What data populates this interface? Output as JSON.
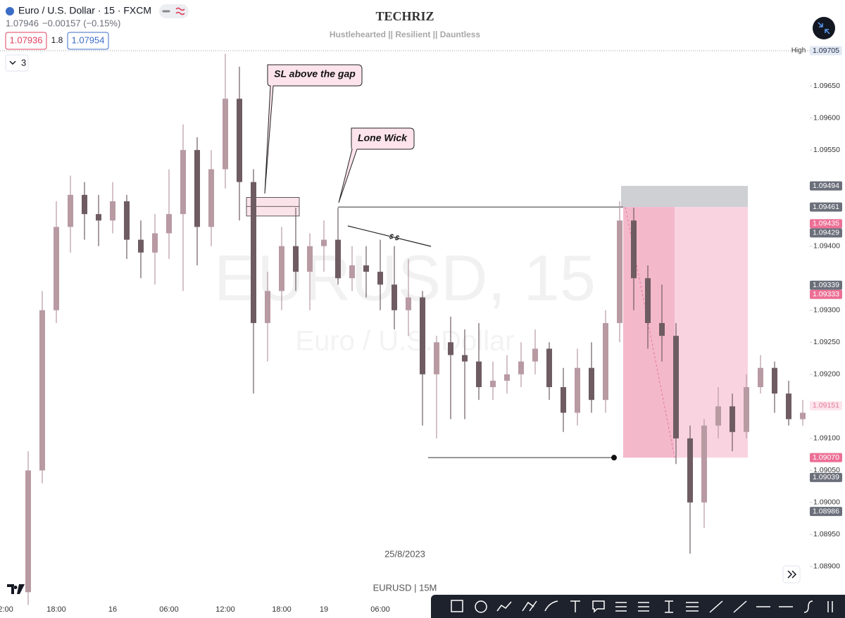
{
  "header": {
    "symbol": "Euro / U.S. Dollar · 15 · FXCM",
    "last": "1.07946",
    "change": "−0.00157 (−0.15%)",
    "sell": "1.07936",
    "spread": "1.8",
    "buy": "1.07954",
    "indicators": "3"
  },
  "brand": {
    "title": "TECHRIZ",
    "subtitle": "Hustlehearted || Resilient || Dauntless"
  },
  "watermark": {
    "main": "EURUSD, 15",
    "sub": "Euro / U.S. Dollar"
  },
  "footer": {
    "date": "25/8/2023",
    "caption": "EURUSD | 15M"
  },
  "chart_data": {
    "type": "candlestick",
    "annotations": [
      "SL above the gap",
      "Lone Wick",
      "$ $"
    ],
    "x_edge_label": "2:00",
    "categories": [
      null,
      null,
      "18:00",
      null,
      null,
      null,
      "16",
      null,
      null,
      null,
      "06:00",
      null,
      null,
      null,
      "12:00",
      null,
      null,
      null,
      "18:00",
      null,
      null,
      "19",
      null,
      null,
      null,
      "06:00",
      null,
      null,
      null,
      null,
      null,
      null,
      null,
      null,
      null,
      null,
      null,
      null,
      null,
      null,
      null,
      null,
      null,
      null,
      null,
      null,
      null,
      null,
      null,
      null,
      null,
      null,
      null,
      null,
      null,
      null
    ],
    "open": [
      1.0886,
      1.0905,
      1.093,
      1.0943,
      1.0948,
      1.0945,
      1.0944,
      1.0947,
      1.0941,
      1.0939,
      1.0942,
      1.0945,
      1.0955,
      1.0943,
      1.0952,
      1.0963,
      1.095,
      1.0928,
      1.0933,
      1.094,
      1.0936,
      1.094,
      1.0941,
      1.0935,
      1.0937,
      1.0936,
      1.0934,
      1.093,
      1.0932,
      1.092,
      1.0925,
      1.0923,
      1.0922,
      1.0918,
      1.0919,
      1.092,
      1.0922,
      1.0924,
      1.0918,
      1.0914,
      1.0921,
      1.0916,
      1.0928,
      1.0944,
      1.0935,
      1.0928,
      1.0926,
      1.091,
      1.09,
      1.0912,
      1.0915,
      1.0911,
      1.0918,
      1.0921,
      1.0917,
      1.0913
    ],
    "high": [
      1.0908,
      1.0933,
      1.0947,
      1.0951,
      1.095,
      1.0948,
      1.095,
      1.0948,
      1.0944,
      1.0945,
      1.0952,
      1.0959,
      1.0957,
      1.0955,
      1.097,
      1.0968,
      1.0952,
      1.0936,
      1.0943,
      1.0946,
      1.0942,
      1.0944,
      1.0946,
      1.094,
      1.094,
      1.0941,
      1.094,
      1.0938,
      1.0933,
      1.0926,
      1.0929,
      1.0927,
      1.0928,
      1.0922,
      1.0923,
      1.0925,
      1.0927,
      1.0925,
      1.0921,
      1.0924,
      1.0925,
      1.093,
      1.0947,
      1.0946,
      1.0937,
      1.0934,
      1.0928,
      1.0912,
      1.0913,
      1.0918,
      1.0917,
      1.092,
      1.0923,
      1.0922,
      1.0919,
      1.0916
    ],
    "low": [
      1.0884,
      1.0903,
      1.0928,
      1.0939,
      1.0941,
      1.094,
      1.0942,
      1.0938,
      1.0935,
      1.0934,
      1.0938,
      1.0933,
      1.0937,
      1.094,
      1.0949,
      1.0944,
      1.0917,
      1.0922,
      1.093,
      1.0933,
      1.093,
      1.0936,
      1.0934,
      1.0933,
      1.0932,
      1.093,
      1.0927,
      1.0926,
      1.0912,
      1.091,
      1.0913,
      1.0913,
      1.0916,
      1.0916,
      1.0917,
      1.0918,
      1.092,
      1.0916,
      1.0911,
      1.0912,
      1.0914,
      1.0914,
      1.0925,
      1.093,
      1.0924,
      1.0922,
      1.0906,
      1.0892,
      1.0896,
      1.091,
      1.0908,
      1.091,
      1.0917,
      1.0914,
      1.0912,
      1.0912
    ],
    "close": [
      1.0905,
      1.093,
      1.0943,
      1.0948,
      1.0945,
      1.0944,
      1.0947,
      1.0941,
      1.0939,
      1.0942,
      1.0945,
      1.0955,
      1.0943,
      1.0952,
      1.0963,
      1.095,
      1.0928,
      1.0933,
      1.094,
      1.0936,
      1.094,
      1.0941,
      1.0935,
      1.0937,
      1.0936,
      1.0934,
      1.093,
      1.0932,
      1.092,
      1.0925,
      1.0923,
      1.0922,
      1.0918,
      1.0919,
      1.092,
      1.0922,
      1.0924,
      1.0918,
      1.0914,
      1.0921,
      1.0916,
      1.0928,
      1.0944,
      1.0935,
      1.0928,
      1.0926,
      1.091,
      1.09,
      1.0912,
      1.0915,
      1.0911,
      1.0918,
      1.0921,
      1.0917,
      1.0913,
      1.0914
    ],
    "up_color": "#b89aa3",
    "down_color": "#6e5c62",
    "ylim": [
      1.08845,
      1.09705
    ],
    "yticks": [
      {
        "value": 1.0965,
        "label": "1.09650"
      },
      {
        "value": 1.096,
        "label": "1.09600"
      },
      {
        "value": 1.0955,
        "label": "1.09550"
      },
      {
        "value": 1.094,
        "label": "1.09400"
      },
      {
        "value": 1.093,
        "label": "1.09300"
      },
      {
        "value": 1.0925,
        "label": "1.09250"
      },
      {
        "value": 1.092,
        "label": "1.09200"
      },
      {
        "value": 1.091,
        "label": "1.09100"
      },
      {
        "value": 1.0905,
        "label": "1.09050"
      },
      {
        "value": 1.09,
        "label": "1.09000"
      },
      {
        "value": 1.0895,
        "label": "1.08950"
      },
      {
        "value": 1.089,
        "label": "1.08900"
      }
    ],
    "high_label": "High",
    "price_labels": [
      {
        "value": 1.09705,
        "label": "1.09705",
        "bg": "#e3e9f3",
        "fg": "#1f2a44"
      },
      {
        "value": 1.09494,
        "label": "1.09494",
        "bg": "#6b6f7a",
        "fg": "#ffffff"
      },
      {
        "value": 1.09461,
        "label": "1.09461",
        "bg": "#6b6f7a",
        "fg": "#ffffff"
      },
      {
        "value": 1.09435,
        "label": "1.09435",
        "bg": "#ec6f95",
        "fg": "#ffffff"
      },
      {
        "value": 1.09429,
        "label": "1.09429",
        "bg": "#6b6f7a",
        "fg": "#ffffff"
      },
      {
        "value": 1.09339,
        "label": "1.09339",
        "bg": "#6b6f7a",
        "fg": "#ffffff"
      },
      {
        "value": 1.09333,
        "label": "1.09333",
        "bg": "#ec6f95",
        "fg": "#ffffff"
      },
      {
        "value": 1.09151,
        "label": "1.09151",
        "bg": "#fde4ec",
        "fg": "#e27a9a"
      },
      {
        "value": 1.0907,
        "label": "1.09070",
        "bg": "#ec6f95",
        "fg": "#ffffff"
      },
      {
        "value": 1.09039,
        "label": "1.09039",
        "bg": "#6b6f7a",
        "fg": "#ffffff"
      },
      {
        "value": 1.08986,
        "label": "1.08986",
        "bg": "#6b6f7a",
        "fg": "#ffffff"
      }
    ],
    "gap_zone": {
      "top": 1.09476,
      "mid": 1.09462,
      "bottom": 1.09447
    }
  }
}
